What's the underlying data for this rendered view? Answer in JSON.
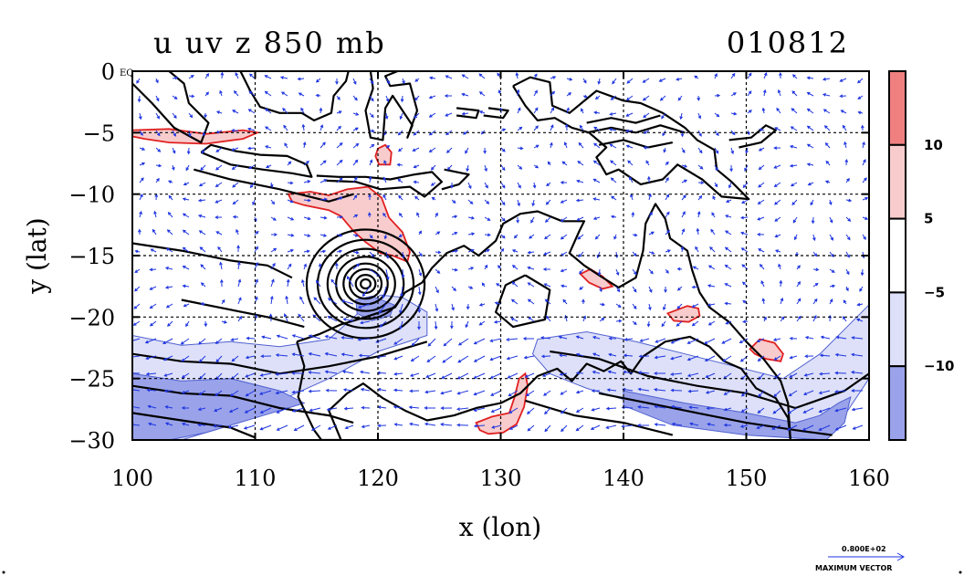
{
  "chart_data": {
    "type": "map-contour",
    "title": "u uv z 850 mb",
    "date_code": "010812",
    "xlabel": "x (lon)",
    "ylabel": "y (lat)",
    "xlim": [
      100,
      160
    ],
    "ylim": [
      -30,
      0
    ],
    "x_ticks": [
      {
        "value": 100,
        "label": "100"
      },
      {
        "value": 110,
        "label": "110"
      },
      {
        "value": 120,
        "label": "120"
      },
      {
        "value": 130,
        "label": "130"
      },
      {
        "value": 140,
        "label": "140"
      },
      {
        "value": 150,
        "label": "150"
      },
      {
        "value": 160,
        "label": "160"
      }
    ],
    "y_ticks": [
      {
        "value": 0,
        "label": "0",
        "suffix": "EQ"
      },
      {
        "value": -5,
        "label": "−5"
      },
      {
        "value": -10,
        "label": "−10"
      },
      {
        "value": -15,
        "label": "−15"
      },
      {
        "value": -20,
        "label": "−20"
      },
      {
        "value": -25,
        "label": "−25"
      },
      {
        "value": -30,
        "label": "−30"
      }
    ],
    "grid_lon": [
      110,
      120,
      130,
      140,
      150
    ],
    "grid_lat": [
      -5,
      -10,
      -15,
      -20,
      -25
    ],
    "colorbar": {
      "bins": [
        {
          "from": 10,
          "to": 15,
          "color": "#f08080"
        },
        {
          "from": 5,
          "to": 10,
          "color": "#f8cccc"
        },
        {
          "from": -5,
          "to": 5,
          "color": "#ffffff"
        },
        {
          "from": -10,
          "to": -5,
          "color": "#dde0f8"
        },
        {
          "from": -15,
          "to": -10,
          "color": "#9aa3ea"
        }
      ],
      "labels": [
        {
          "value": 10,
          "text": "10"
        },
        {
          "value": 5,
          "text": "5"
        },
        {
          "value": -5,
          "text": "−5"
        },
        {
          "value": -10,
          "text": "−10"
        }
      ]
    },
    "shaded_regions": [
      {
        "level": 10,
        "color": "#f8cccc",
        "points": [
          [
            100,
            -4.8
          ],
          [
            103,
            -4.7
          ],
          [
            106,
            -5.1
          ],
          [
            109,
            -4.8
          ],
          [
            110.2,
            -5.0
          ],
          [
            109,
            -5.5
          ],
          [
            106,
            -5.9
          ],
          [
            103,
            -5.8
          ],
          [
            101,
            -5.5
          ],
          [
            100,
            -5.3
          ]
        ]
      },
      {
        "level": 10,
        "color": "#f8cccc",
        "points": [
          [
            112.7,
            -10.0
          ],
          [
            114.5,
            -9.8
          ],
          [
            116,
            -10.1
          ],
          [
            117.5,
            -9.6
          ],
          [
            119.2,
            -9.4
          ],
          [
            120.3,
            -10.3
          ],
          [
            120.9,
            -11.9
          ],
          [
            122,
            -13.1
          ],
          [
            122.6,
            -14.7
          ],
          [
            122.4,
            -15.5
          ],
          [
            121.2,
            -15.0
          ],
          [
            120.2,
            -14.8
          ],
          [
            119,
            -13.9
          ],
          [
            118,
            -13.0
          ],
          [
            117,
            -11.8
          ],
          [
            116,
            -11.3
          ],
          [
            114,
            -10.9
          ],
          [
            113,
            -10.6
          ]
        ]
      },
      {
        "level": 10,
        "color": "#f8cccc",
        "points": [
          [
            120,
            -6.3
          ],
          [
            120.6,
            -6.0
          ],
          [
            121.1,
            -6.6
          ],
          [
            121.0,
            -7.6
          ],
          [
            120.1,
            -7.6
          ],
          [
            119.8,
            -6.9
          ]
        ]
      },
      {
        "level": 10,
        "color": "#f8cccc",
        "points": [
          [
            128,
            -28.6
          ],
          [
            129.3,
            -28.1
          ],
          [
            130.7,
            -27.8
          ],
          [
            131.1,
            -26.6
          ],
          [
            131.5,
            -25.0
          ],
          [
            132.0,
            -24.6
          ],
          [
            132.2,
            -25.6
          ],
          [
            131.9,
            -27.3
          ],
          [
            131.3,
            -28.7
          ],
          [
            130.2,
            -29.4
          ],
          [
            129,
            -29.5
          ],
          [
            128.3,
            -29.2
          ]
        ]
      },
      {
        "level": 10,
        "color": "#f8cccc",
        "points": [
          [
            136.5,
            -16.5
          ],
          [
            137.3,
            -16.1
          ],
          [
            138.3,
            -16.7
          ],
          [
            139.1,
            -17.5
          ],
          [
            138.3,
            -17.7
          ],
          [
            137.2,
            -17.2
          ]
        ]
      },
      {
        "level": 10,
        "color": "#f8cccc",
        "points": [
          [
            143.6,
            -19.7
          ],
          [
            145.2,
            -19.1
          ],
          [
            146.1,
            -19.3
          ],
          [
            146.2,
            -19.9
          ],
          [
            145.3,
            -20.4
          ],
          [
            144.1,
            -20.3
          ]
        ]
      },
      {
        "level": 10,
        "color": "#f8cccc",
        "points": [
          [
            150.3,
            -22.6
          ],
          [
            151.1,
            -21.8
          ],
          [
            152.3,
            -22.1
          ],
          [
            153.0,
            -23.0
          ],
          [
            152.8,
            -23.6
          ],
          [
            151.6,
            -23.4
          ],
          [
            150.7,
            -23.0
          ]
        ]
      },
      {
        "level": -5,
        "color": "#dde0f8",
        "points": [
          [
            100,
            -21.5
          ],
          [
            104,
            -22.3
          ],
          [
            108,
            -22.0
          ],
          [
            112,
            -22.4
          ],
          [
            116,
            -21.8
          ],
          [
            118.5,
            -19.6
          ],
          [
            120.2,
            -18.2
          ],
          [
            122,
            -18.4
          ],
          [
            124,
            -19.6
          ],
          [
            124,
            -21.5
          ],
          [
            120,
            -22.8
          ],
          [
            116,
            -25.0
          ],
          [
            112,
            -26.8
          ],
          [
            108,
            -28.8
          ],
          [
            104,
            -30
          ],
          [
            100,
            -30
          ]
        ]
      },
      {
        "level": -10,
        "color": "#9aa3ea",
        "points": [
          [
            100,
            -24.6
          ],
          [
            104,
            -25.2
          ],
          [
            108,
            -25.0
          ],
          [
            112,
            -26.0
          ],
          [
            114,
            -27.0
          ],
          [
            110,
            -28.2
          ],
          [
            106,
            -29.4
          ],
          [
            103,
            -30
          ],
          [
            100,
            -30
          ]
        ]
      },
      {
        "level": -10,
        "color": "#9aa3ea",
        "points": [
          [
            118.2,
            -18.6
          ],
          [
            119.5,
            -18.3
          ],
          [
            121.3,
            -19.0
          ],
          [
            121.0,
            -19.9
          ],
          [
            119.5,
            -20.3
          ],
          [
            118.3,
            -19.7
          ]
        ]
      },
      {
        "level": -5,
        "color": "#dde0f8",
        "points": [
          [
            133,
            -21.8
          ],
          [
            137,
            -21.2
          ],
          [
            141,
            -22.0
          ],
          [
            145,
            -23.0
          ],
          [
            149,
            -24.0
          ],
          [
            153,
            -25.0
          ],
          [
            156,
            -23.0
          ],
          [
            158,
            -21.0
          ],
          [
            160,
            -19.0
          ],
          [
            160,
            -25.0
          ],
          [
            158,
            -28.0
          ],
          [
            156,
            -30
          ],
          [
            150,
            -29.2
          ],
          [
            146,
            -28.2
          ],
          [
            141,
            -27.0
          ],
          [
            137,
            -25.8
          ],
          [
            134,
            -24.6
          ],
          [
            132.6,
            -23.0
          ]
        ]
      },
      {
        "level": -10,
        "color": "#9aa3ea",
        "points": [
          [
            140,
            -26.0
          ],
          [
            145,
            -27.0
          ],
          [
            150,
            -27.8
          ],
          [
            154,
            -28.6
          ],
          [
            156,
            -28.0
          ],
          [
            157.5,
            -27.0
          ],
          [
            158.5,
            -26.5
          ],
          [
            158,
            -28.6
          ],
          [
            156.5,
            -30
          ],
          [
            150,
            -29.6
          ],
          [
            144,
            -28.8
          ],
          [
            140,
            -27.2
          ]
        ]
      }
    ],
    "geopotential_rings": {
      "center": [
        119.0,
        -17.3
      ],
      "radii_deg": [
        0.4,
        0.8,
        1.3,
        1.8,
        2.4,
        3.1,
        3.9,
        4.8
      ]
    }
  },
  "max_vector": {
    "value_text": "0.800E+02",
    "label": "MAXIMUM VECTOR"
  }
}
